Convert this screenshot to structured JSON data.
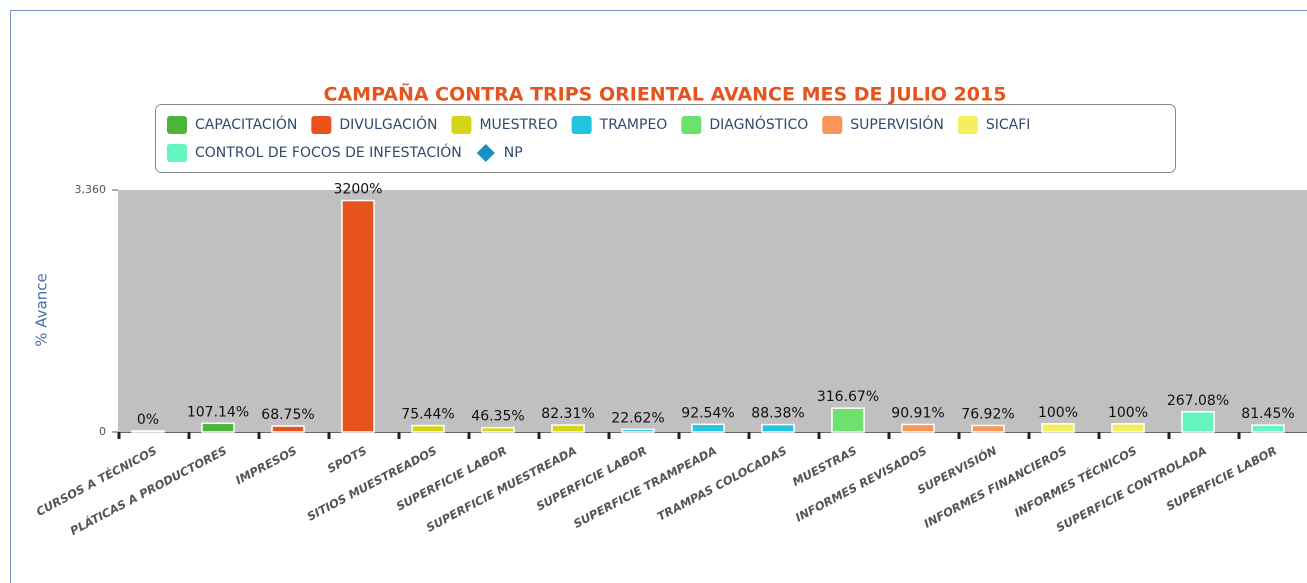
{
  "chart_data": {
    "type": "bar",
    "title": "CAMPAÑA CONTRA TRIPS ORIENTAL AVANCE MES DE JULIO 2015",
    "y_axis_label": "% Avance",
    "categories": [
      "CURSOS A TÉCNICOS",
      "PLÁTICAS A PRODUCTORES",
      "IMPRESOS",
      "SPOTS",
      "SITIOS MUESTREADOS",
      "SUPERFICIE LABOR",
      "SUPERFICIE MUESTREADA",
      "SUPERFICIE LABOR",
      "SUPERFICIE TRAMPEADA",
      "TRAMPAS COLOCADAS",
      "MUESTRAS",
      "INFORMES REVISADOS",
      "SUPERVISIÓN",
      "INFORMES FINANCIEROS",
      "INFORMES TÉCNICOS",
      "SUPERFICIE CONTROLADA",
      "SUPERFICIE LABOR"
    ],
    "series": [
      {
        "name": "CAPACITACIÓN",
        "color": "#4cb53a",
        "values": [
          0,
          107.14,
          null,
          null,
          null,
          null,
          null,
          null,
          null,
          null,
          null,
          null,
          null,
          null,
          null,
          null,
          null
        ],
        "value_labels": [
          "0%",
          "107.14%",
          null,
          null,
          null,
          null,
          null,
          null,
          null,
          null,
          null,
          null,
          null,
          null,
          null,
          null,
          null
        ]
      },
      {
        "name": "DIVULGACIÓN",
        "color": "#e8531d",
        "values": [
          null,
          null,
          68.75,
          3200,
          null,
          null,
          null,
          null,
          null,
          null,
          null,
          null,
          null,
          null,
          null,
          null,
          null
        ],
        "value_labels": [
          null,
          null,
          "68.75%",
          "3200%",
          null,
          null,
          null,
          null,
          null,
          null,
          null,
          null,
          null,
          null,
          null,
          null,
          null
        ]
      },
      {
        "name": "MUESTREO",
        "color": "#d4d418",
        "values": [
          null,
          null,
          null,
          null,
          75.44,
          46.35,
          82.31,
          null,
          null,
          null,
          null,
          null,
          null,
          null,
          null,
          null,
          null
        ],
        "value_labels": [
          null,
          null,
          null,
          null,
          "75.44%",
          "46.35%",
          "82.31%",
          null,
          null,
          null,
          null,
          null,
          null,
          null,
          null,
          null,
          null
        ]
      },
      {
        "name": "TRAMPEO",
        "color": "#22c4de",
        "values": [
          null,
          null,
          null,
          null,
          null,
          null,
          null,
          22.62,
          92.54,
          88.38,
          null,
          null,
          null,
          null,
          null,
          null,
          null
        ],
        "value_labels": [
          null,
          null,
          null,
          null,
          null,
          null,
          null,
          "22.62%",
          "92.54%",
          "88.38%",
          null,
          null,
          null,
          null,
          null,
          null,
          null
        ]
      },
      {
        "name": "DIAGNÓSTICO",
        "color": "#6ee06e",
        "values": [
          null,
          null,
          null,
          null,
          null,
          null,
          null,
          null,
          null,
          null,
          316.67,
          null,
          null,
          null,
          null,
          null,
          null
        ],
        "value_labels": [
          null,
          null,
          null,
          null,
          null,
          null,
          null,
          null,
          null,
          null,
          "316.67%",
          null,
          null,
          null,
          null,
          null,
          null
        ]
      },
      {
        "name": "SUPERVISIÓN",
        "color": "#f7965a",
        "values": [
          null,
          null,
          null,
          null,
          null,
          null,
          null,
          null,
          null,
          null,
          null,
          90.91,
          76.92,
          null,
          null,
          null,
          null
        ],
        "value_labels": [
          null,
          null,
          null,
          null,
          null,
          null,
          null,
          null,
          null,
          null,
          null,
          "90.91%",
          "76.92%",
          null,
          null,
          null,
          null
        ]
      },
      {
        "name": "SICAFI",
        "color": "#f5ee5e",
        "values": [
          null,
          null,
          null,
          null,
          null,
          null,
          null,
          null,
          null,
          null,
          null,
          null,
          null,
          100,
          100,
          null,
          null
        ],
        "value_labels": [
          null,
          null,
          null,
          null,
          null,
          null,
          null,
          null,
          null,
          null,
          null,
          null,
          null,
          "100%",
          "100%",
          null,
          null
        ]
      },
      {
        "name": "CONTROL DE FOCOS DE INFESTACIÓN",
        "color": "#66f5c0",
        "values": [
          null,
          null,
          null,
          null,
          null,
          null,
          null,
          null,
          null,
          null,
          null,
          null,
          null,
          null,
          null,
          267.08,
          81.45
        ],
        "value_labels": [
          null,
          null,
          null,
          null,
          null,
          null,
          null,
          null,
          null,
          null,
          null,
          null,
          null,
          null,
          null,
          "267.08%",
          "81.45%"
        ]
      },
      {
        "name": "NP",
        "color": "#1a8fc4",
        "marker": "diamond",
        "values": [
          null,
          null,
          null,
          null,
          null,
          null,
          null,
          null,
          null,
          null,
          null,
          null,
          null,
          null,
          null,
          null,
          null
        ]
      }
    ],
    "ylim": [
      0,
      3360
    ],
    "yticks": [
      0,
      {
        "value": 3360,
        "label": "3,360"
      }
    ],
    "plot_background": "#c0c0c0"
  }
}
